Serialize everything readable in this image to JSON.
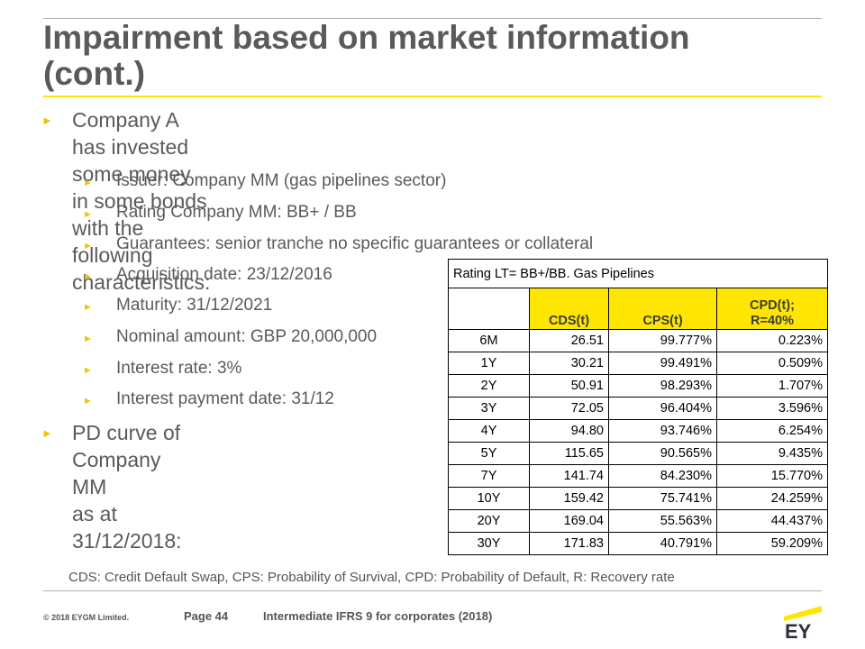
{
  "title": {
    "line1": "Impairment based on market information",
    "line2": "(cont.)"
  },
  "bullets": {
    "main1_line1": "Company A has invested some money in some bonds with the following",
    "main1_line2": "characteristics:",
    "sub": [
      "Issuer: Company MM  (gas pipelines sector)",
      "Rating Company MM:  BB+ / BB",
      "Guarantees: senior tranche no specific guarantees or collateral",
      "Acquisition date: 23/12/2016",
      "Maturity: 31/12/2021",
      "Nominal amount: GBP 20,000,000",
      "Interest rate: 3%",
      "Interest payment date: 31/12"
    ],
    "main2_line1": "PD curve of Company MM",
    "main2_line2": "as at 31/12/2018:"
  },
  "table": {
    "caption": "Rating LT= BB+/BB. Gas Pipelines",
    "headers": [
      "",
      "CDS(t)",
      "CPS(t)",
      "CPD(t);",
      "R=40%"
    ],
    "rows": [
      [
        "6M",
        "26.51",
        "99.777%",
        "0.223%"
      ],
      [
        "1Y",
        "30.21",
        "99.491%",
        "0.509%"
      ],
      [
        "2Y",
        "50.91",
        "98.293%",
        "1.707%"
      ],
      [
        "3Y",
        "72.05",
        "96.404%",
        "3.596%"
      ],
      [
        "4Y",
        "94.80",
        "93.746%",
        "6.254%"
      ],
      [
        "5Y",
        "115.65",
        "90.565%",
        "9.435%"
      ],
      [
        "7Y",
        "141.74",
        "84.230%",
        "15.770%"
      ],
      [
        "10Y",
        "159.42",
        "75.741%",
        "24.259%"
      ],
      [
        "20Y",
        "169.04",
        "55.563%",
        "44.437%"
      ],
      [
        "30Y",
        "171.83",
        "40.791%",
        "59.209%"
      ]
    ]
  },
  "footnote": "CDS: Credit Default Swap, CPS: Probability of Survival,  CPD: Probability of Default, R: Recovery rate",
  "footer": {
    "copyright": "© 2018  EYGM  Limited.",
    "page": "Page 44",
    "course": "Intermediate IFRS 9 for corporates (2018)"
  },
  "logo": {
    "text": "EY",
    "accent": "#ffe600"
  }
}
